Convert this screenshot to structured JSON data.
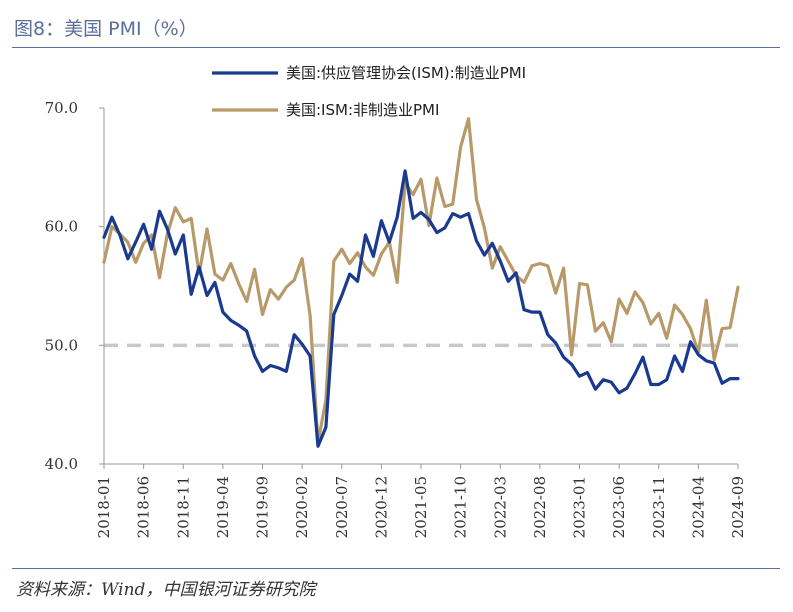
{
  "figure": {
    "title": "图8：美国 PMI（%）",
    "source": "资料来源：Wind，中国银河证券研究院"
  },
  "chart_data": {
    "type": "line",
    "ylim": [
      40,
      70
    ],
    "yticks": [
      "40.0",
      "50.0",
      "60.0",
      "70.0"
    ],
    "xtick_labels": [
      "2018-01",
      "2018-06",
      "2018-11",
      "2019-04",
      "2019-09",
      "2020-02",
      "2020-07",
      "2020-12",
      "2021-05",
      "2021-10",
      "2022-03",
      "2022-08",
      "2023-01",
      "2023-06",
      "2023-11",
      "2024-04",
      "2024-09"
    ],
    "reference_line": 50,
    "x": [
      "2018-01",
      "2018-02",
      "2018-03",
      "2018-04",
      "2018-05",
      "2018-06",
      "2018-07",
      "2018-08",
      "2018-09",
      "2018-10",
      "2018-11",
      "2018-12",
      "2019-01",
      "2019-02",
      "2019-03",
      "2019-04",
      "2019-05",
      "2019-06",
      "2019-07",
      "2019-08",
      "2019-09",
      "2019-10",
      "2019-11",
      "2019-12",
      "2020-01",
      "2020-02",
      "2020-03",
      "2020-04",
      "2020-05",
      "2020-06",
      "2020-07",
      "2020-08",
      "2020-09",
      "2020-10",
      "2020-11",
      "2020-12",
      "2021-01",
      "2021-02",
      "2021-03",
      "2021-04",
      "2021-05",
      "2021-06",
      "2021-07",
      "2021-08",
      "2021-09",
      "2021-10",
      "2021-11",
      "2021-12",
      "2022-01",
      "2022-02",
      "2022-03",
      "2022-04",
      "2022-05",
      "2022-06",
      "2022-07",
      "2022-08",
      "2022-09",
      "2022-10",
      "2022-11",
      "2022-12",
      "2023-01",
      "2023-02",
      "2023-03",
      "2023-04",
      "2023-05",
      "2023-06",
      "2023-07",
      "2023-08",
      "2023-09",
      "2023-10",
      "2023-11",
      "2023-12",
      "2024-01",
      "2024-02",
      "2024-03",
      "2024-04",
      "2024-05",
      "2024-06",
      "2024-07",
      "2024-08",
      "2024-09"
    ],
    "series": [
      {
        "name": "美国:供应管理协会(ISM):制造业PMI",
        "color": "#1a3a8f",
        "values": [
          59.1,
          60.8,
          59.3,
          57.3,
          58.7,
          60.2,
          58.1,
          61.3,
          59.8,
          57.7,
          59.3,
          54.3,
          56.6,
          54.2,
          55.3,
          52.8,
          52.1,
          51.7,
          51.2,
          49.1,
          47.8,
          48.3,
          48.1,
          47.8,
          50.9,
          50.1,
          49.1,
          41.5,
          43.1,
          52.6,
          54.2,
          56.0,
          55.4,
          59.3,
          57.5,
          60.5,
          58.7,
          60.8,
          64.7,
          60.7,
          61.2,
          60.6,
          59.5,
          59.9,
          61.1,
          60.8,
          61.1,
          58.8,
          57.6,
          58.6,
          57.1,
          55.4,
          56.1,
          53.0,
          52.8,
          52.8,
          50.9,
          50.2,
          49.0,
          48.4,
          47.4,
          47.7,
          46.3,
          47.1,
          46.9,
          46.0,
          46.4,
          47.6,
          49.0,
          46.7,
          46.7,
          47.1,
          49.1,
          47.8,
          50.3,
          49.2,
          48.7,
          48.5,
          46.8,
          47.2,
          47.2
        ]
      },
      {
        "name": "美国:ISM:非制造业PMI",
        "color": "#b89a6a",
        "values": [
          57.0,
          60.0,
          59.4,
          58.7,
          57.0,
          58.6,
          59.3,
          55.7,
          59.4,
          61.6,
          60.4,
          60.7,
          56.0,
          59.8,
          56.0,
          55.5,
          56.9,
          55.2,
          53.7,
          56.4,
          52.6,
          54.7,
          53.9,
          54.9,
          55.5,
          57.3,
          52.5,
          41.8,
          45.4,
          57.1,
          58.1,
          56.9,
          57.8,
          56.6,
          55.9,
          57.7,
          58.7,
          55.3,
          63.7,
          62.7,
          64.0,
          60.1,
          64.1,
          61.7,
          61.9,
          66.7,
          69.1,
          62.3,
          59.9,
          56.5,
          58.3,
          57.1,
          55.9,
          55.3,
          56.7,
          56.9,
          56.7,
          54.4,
          56.5,
          49.2,
          55.2,
          55.1,
          51.2,
          51.9,
          50.3,
          53.9,
          52.7,
          54.5,
          53.6,
          51.8,
          52.7,
          50.6,
          53.4,
          52.6,
          51.4,
          49.4,
          53.8,
          48.8,
          51.4,
          51.5,
          54.9
        ]
      }
    ]
  }
}
